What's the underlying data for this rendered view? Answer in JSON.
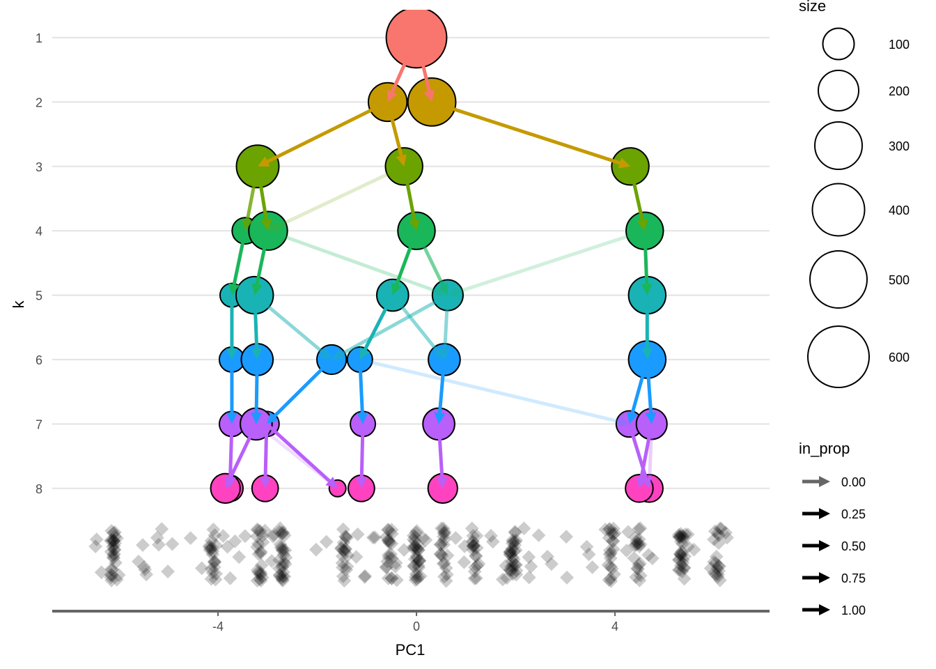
{
  "chart_data": {
    "type": "scatter",
    "title": "",
    "xlabel": "PC1",
    "ylabel": "k",
    "xlim": [
      -7.2,
      7.2
    ],
    "x_ticks": [
      -4,
      0,
      4
    ],
    "x_tick_labels": [
      "-4",
      "0",
      "4"
    ],
    "y_ticks": [
      1,
      2,
      3,
      4,
      5,
      6,
      7,
      8
    ],
    "y_tick_labels": [
      "1",
      "2",
      "3",
      "4",
      "5",
      "6",
      "7",
      "8"
    ],
    "grid": "horizontal major",
    "k_colors": {
      "1": "#F8766D",
      "2": "#C49A00",
      "3": "#6BA300",
      "4": "#1AB65A",
      "5": "#19B3B5",
      "6": "#1A9BFF",
      "7": "#B95FFA",
      "8": "#FF43C0"
    },
    "nodes": [
      {
        "id": "1_1",
        "k": 1,
        "pc1": 0.0,
        "size": 580
      },
      {
        "id": "2_1",
        "k": 2,
        "pc1": -0.58,
        "size": 180
      },
      {
        "id": "2_2",
        "k": 2,
        "pc1": 0.31,
        "size": 310
      },
      {
        "id": "3_1",
        "k": 3,
        "pc1": -3.2,
        "size": 230
      },
      {
        "id": "3_2",
        "k": 3,
        "pc1": -0.25,
        "size": 165
      },
      {
        "id": "3_3",
        "k": 3,
        "pc1": 4.31,
        "size": 165
      },
      {
        "id": "4_1",
        "k": 4,
        "pc1": -3.45,
        "size": 60
      },
      {
        "id": "4_2",
        "k": 4,
        "pc1": -2.99,
        "size": 180
      },
      {
        "id": "4_3",
        "k": 4,
        "pc1": 0.0,
        "size": 165
      },
      {
        "id": "4_4",
        "k": 4,
        "pc1": 4.6,
        "size": 165
      },
      {
        "id": "5_1",
        "k": 5,
        "pc1": -3.72,
        "size": 45
      },
      {
        "id": "5_2",
        "k": 5,
        "pc1": -3.26,
        "size": 165
      },
      {
        "id": "5_3",
        "k": 5,
        "pc1": -0.48,
        "size": 105
      },
      {
        "id": "5_4",
        "k": 5,
        "pc1": 0.63,
        "size": 95
      },
      {
        "id": "5_5",
        "k": 5,
        "pc1": 4.65,
        "size": 165
      },
      {
        "id": "6_1",
        "k": 6,
        "pc1": -3.72,
        "size": 50
      },
      {
        "id": "6_2",
        "k": 6,
        "pc1": -3.21,
        "size": 105
      },
      {
        "id": "6_3",
        "k": 6,
        "pc1": -1.71,
        "size": 85
      },
      {
        "id": "6_4",
        "k": 6,
        "pc1": -1.14,
        "size": 50
      },
      {
        "id": "6_5",
        "k": 6,
        "pc1": 0.56,
        "size": 105
      },
      {
        "id": "6_6",
        "k": 6,
        "pc1": 4.65,
        "size": 165
      },
      {
        "id": "7_1",
        "k": 7,
        "pc1": -3.72,
        "size": 50
      },
      {
        "id": "7_2",
        "k": 7,
        "pc1": -3.02,
        "size": 50
      },
      {
        "id": "7_3",
        "k": 7,
        "pc1": -3.23,
        "size": 105
      },
      {
        "id": "7_4",
        "k": 7,
        "pc1": -1.08,
        "size": 50
      },
      {
        "id": "7_5",
        "k": 7,
        "pc1": 0.45,
        "size": 105
      },
      {
        "id": "7_6",
        "k": 7,
        "pc1": 4.29,
        "size": 60
      },
      {
        "id": "7_7",
        "k": 7,
        "pc1": 4.74,
        "size": 95
      },
      {
        "id": "8_1",
        "k": 8,
        "pc1": -3.76,
        "size": 60
      },
      {
        "id": "8_2",
        "k": 8,
        "pc1": -3.85,
        "size": 85
      },
      {
        "id": "8_3",
        "k": 8,
        "pc1": -3.05,
        "size": 60
      },
      {
        "id": "8_4",
        "k": 8,
        "pc1": -1.59,
        "size": 20
      },
      {
        "id": "8_5",
        "k": 8,
        "pc1": -1.11,
        "size": 60
      },
      {
        "id": "8_6",
        "k": 8,
        "pc1": 0.53,
        "size": 85
      },
      {
        "id": "8_7",
        "k": 8,
        "pc1": 4.69,
        "size": 70
      },
      {
        "id": "8_8",
        "k": 8,
        "pc1": 4.49,
        "size": 70
      }
    ],
    "edges": [
      {
        "from": "1_1",
        "to": "2_1",
        "in_prop": 1.0
      },
      {
        "from": "1_1",
        "to": "2_2",
        "in_prop": 1.0
      },
      {
        "from": "2_1",
        "to": "3_1",
        "in_prop": 1.0
      },
      {
        "from": "2_1",
        "to": "3_2",
        "in_prop": 1.0
      },
      {
        "from": "2_2",
        "to": "3_3",
        "in_prop": 1.0
      },
      {
        "from": "3_1",
        "to": "4_1",
        "in_prop": 0.8
      },
      {
        "from": "3_1",
        "to": "4_2",
        "in_prop": 1.0
      },
      {
        "from": "3_2",
        "to": "4_2",
        "in_prop": 0.2
      },
      {
        "from": "3_2",
        "to": "4_3",
        "in_prop": 1.0
      },
      {
        "from": "3_3",
        "to": "4_4",
        "in_prop": 1.0
      },
      {
        "from": "4_1",
        "to": "5_1",
        "in_prop": 1.0
      },
      {
        "from": "4_2",
        "to": "5_2",
        "in_prop": 1.0
      },
      {
        "from": "4_2",
        "to": "5_4",
        "in_prop": 0.25
      },
      {
        "from": "4_3",
        "to": "5_3",
        "in_prop": 1.0
      },
      {
        "from": "4_3",
        "to": "5_4",
        "in_prop": 0.6
      },
      {
        "from": "4_4",
        "to": "5_4",
        "in_prop": 0.2
      },
      {
        "from": "4_4",
        "to": "5_5",
        "in_prop": 1.0
      },
      {
        "from": "5_1",
        "to": "6_1",
        "in_prop": 1.0
      },
      {
        "from": "5_2",
        "to": "6_2",
        "in_prop": 1.0
      },
      {
        "from": "5_2",
        "to": "6_3",
        "in_prop": 0.5
      },
      {
        "from": "5_4",
        "to": "6_3",
        "in_prop": 0.5
      },
      {
        "from": "5_3",
        "to": "6_4",
        "in_prop": 1.0
      },
      {
        "from": "5_4",
        "to": "6_5",
        "in_prop": 0.5
      },
      {
        "from": "5_3",
        "to": "6_5",
        "in_prop": 0.5
      },
      {
        "from": "5_5",
        "to": "6_6",
        "in_prop": 1.0
      },
      {
        "from": "6_1",
        "to": "7_1",
        "in_prop": 1.0
      },
      {
        "from": "6_2",
        "to": "7_3",
        "in_prop": 1.0
      },
      {
        "from": "6_3",
        "to": "7_2",
        "in_prop": 1.0
      },
      {
        "from": "6_4",
        "to": "7_4",
        "in_prop": 1.0
      },
      {
        "from": "6_4",
        "to": "7_6",
        "in_prop": 0.2
      },
      {
        "from": "6_5",
        "to": "7_5",
        "in_prop": 1.0
      },
      {
        "from": "6_6",
        "to": "7_6",
        "in_prop": 1.0
      },
      {
        "from": "6_6",
        "to": "7_7",
        "in_prop": 1.0
      },
      {
        "from": "7_1",
        "to": "8_1",
        "in_prop": 1.0
      },
      {
        "from": "7_3",
        "to": "8_2",
        "in_prop": 1.0
      },
      {
        "from": "7_2",
        "to": "8_3",
        "in_prop": 1.0
      },
      {
        "from": "7_2",
        "to": "8_4",
        "in_prop": 1.0
      },
      {
        "from": "7_3",
        "to": "8_4",
        "in_prop": 0.2
      },
      {
        "from": "7_4",
        "to": "8_5",
        "in_prop": 1.0
      },
      {
        "from": "7_5",
        "to": "8_6",
        "in_prop": 1.0
      },
      {
        "from": "7_6",
        "to": "8_7",
        "in_prop": 1.0
      },
      {
        "from": "7_7",
        "to": "8_8",
        "in_prop": 1.0
      },
      {
        "from": "7_7",
        "to": "8_7",
        "in_prop": 0.3
      }
    ],
    "points_rug": {
      "description": "jittered grey diamonds showing individual sample PC1 positions",
      "columns_pc1": [
        -6.1,
        -4.1,
        -3.15,
        -2.7,
        -1.45,
        -0.55,
        0.0,
        0.55,
        1.2,
        1.95,
        3.95,
        4.45,
        5.35,
        6.05
      ],
      "scatter_pc1_range": [
        -6.8,
        6.6
      ]
    },
    "legends": {
      "size": {
        "title": "size",
        "breaks": [
          100,
          200,
          300,
          400,
          500,
          600
        ],
        "labels": [
          "100",
          "200",
          "300",
          "400",
          "500",
          "600"
        ]
      },
      "in_prop": {
        "title": "in_prop",
        "breaks": [
          0.0,
          0.25,
          0.5,
          0.75,
          1.0
        ],
        "labels": [
          "0.00",
          "0.25",
          "0.50",
          "0.75",
          "1.00"
        ]
      }
    }
  }
}
